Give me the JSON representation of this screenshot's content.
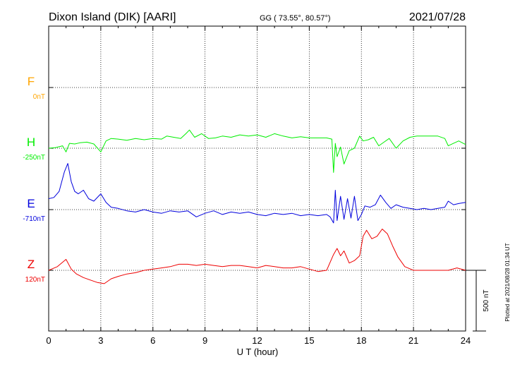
{
  "header": {
    "station": "Dixon Island (DIK)  [AARI]",
    "coords": "GG ( 73.55°,  80.57°)",
    "date": "2021/07/28"
  },
  "footer_note": "Plotted at 2021/08/28 01:34 UT",
  "colors": {
    "F": "#ffa500",
    "H": "#00ee00",
    "E": "#0000dd",
    "Z": "#ee0000",
    "axis": "#000000"
  },
  "chart_data": {
    "type": "line",
    "xlabel": "U T (hour)",
    "xlim": [
      0,
      24
    ],
    "x_ticks": [
      0,
      3,
      6,
      9,
      12,
      15,
      18,
      21,
      24
    ],
    "grid": true,
    "scale_bar": {
      "label": "500 nT",
      "value_nT": 500
    },
    "series": [
      {
        "name": "F",
        "baseline_label": "0nT",
        "baseline_nT": 0,
        "x": [],
        "values": []
      },
      {
        "name": "H",
        "baseline_label": "-250nT",
        "baseline_nT": -250,
        "x": [
          0,
          0.4,
          0.8,
          1.0,
          1.2,
          1.5,
          1.8,
          2.2,
          2.6,
          3.0,
          3.3,
          3.6,
          4.0,
          4.5,
          5.0,
          5.5,
          6.0,
          6.5,
          6.8,
          7.2,
          7.6,
          7.9,
          8.1,
          8.4,
          8.8,
          9.2,
          9.6,
          10.0,
          10.5,
          11.0,
          11.5,
          12.0,
          12.5,
          13.0,
          13.5,
          14.0,
          14.5,
          15.0,
          15.5,
          16.0,
          16.3,
          16.4,
          16.5,
          16.6,
          16.8,
          17.0,
          17.3,
          17.6,
          17.9,
          18.1,
          18.4,
          18.7,
          19.0,
          19.3,
          19.6,
          20.0,
          20.4,
          20.8,
          21.2,
          21.6,
          22.0,
          22.4,
          22.8,
          23.0,
          23.3,
          23.6,
          24.0
        ],
        "values": [
          -250,
          -245,
          -230,
          -280,
          -210,
          -215,
          -205,
          -200,
          -215,
          -280,
          -190,
          -170,
          -175,
          -185,
          -170,
          -180,
          -170,
          -175,
          -150,
          -160,
          -170,
          -130,
          -100,
          -160,
          -130,
          -170,
          -165,
          -150,
          -160,
          -140,
          -150,
          -140,
          -160,
          -130,
          -150,
          -165,
          -155,
          -165,
          -165,
          -165,
          -175,
          -450,
          -210,
          -320,
          -240,
          -380,
          -270,
          -250,
          -150,
          -190,
          -180,
          -160,
          -230,
          -200,
          -170,
          -250,
          -190,
          -160,
          -150,
          -150,
          -150,
          -150,
          -170,
          -230,
          -210,
          -190,
          -220
        ]
      },
      {
        "name": "E",
        "baseline_label": "-710nT",
        "baseline_nT": -710,
        "x": [
          0,
          0.3,
          0.6,
          0.9,
          1.1,
          1.3,
          1.5,
          1.7,
          2.0,
          2.3,
          2.6,
          3.0,
          3.3,
          3.6,
          4.0,
          4.5,
          5.0,
          5.5,
          6.0,
          6.5,
          7.0,
          7.5,
          8.0,
          8.5,
          9.0,
          9.5,
          10.0,
          10.5,
          11.0,
          11.5,
          12.0,
          12.5,
          13.0,
          13.5,
          14.0,
          14.5,
          15.0,
          15.5,
          16.0,
          16.2,
          16.4,
          16.5,
          16.6,
          16.8,
          17.0,
          17.2,
          17.4,
          17.6,
          17.8,
          18.0,
          18.2,
          18.5,
          18.8,
          19.1,
          19.4,
          19.7,
          20.0,
          20.4,
          20.8,
          21.2,
          21.6,
          22.0,
          22.4,
          22.8,
          23.0,
          23.3,
          23.6,
          24.0
        ],
        "values": [
          -620,
          -610,
          -560,
          -400,
          -330,
          -480,
          -560,
          -580,
          -550,
          -620,
          -640,
          -580,
          -650,
          -690,
          -700,
          -720,
          -730,
          -710,
          -730,
          -740,
          -720,
          -730,
          -720,
          -770,
          -740,
          -720,
          -750,
          -730,
          -740,
          -730,
          -750,
          -760,
          -740,
          -750,
          -740,
          -760,
          -750,
          -760,
          -750,
          -770,
          -820,
          -550,
          -800,
          -600,
          -790,
          -620,
          -780,
          -600,
          -800,
          -750,
          -680,
          -690,
          -670,
          -590,
          -650,
          -700,
          -670,
          -690,
          -700,
          -710,
          -700,
          -710,
          -700,
          -690,
          -640,
          -670,
          -660,
          -650
        ]
      },
      {
        "name": "Z",
        "baseline_label": "120nT",
        "baseline_nT": 120,
        "x": [
          0,
          0.5,
          1.0,
          1.3,
          1.6,
          2.0,
          2.4,
          2.8,
          3.2,
          3.6,
          4.0,
          4.5,
          5.0,
          5.5,
          6.0,
          6.5,
          7.0,
          7.5,
          8.0,
          8.5,
          9.0,
          9.5,
          10.0,
          10.5,
          11.0,
          11.5,
          12.0,
          12.5,
          13.0,
          13.5,
          14.0,
          14.5,
          15.0,
          15.5,
          16.0,
          16.4,
          16.6,
          16.8,
          17.0,
          17.3,
          17.6,
          17.9,
          18.1,
          18.3,
          18.6,
          18.9,
          19.2,
          19.5,
          19.8,
          20.1,
          20.5,
          21.0,
          21.5,
          22.0,
          22.5,
          23.0,
          23.5,
          24.0
        ],
        "values": [
          120,
          150,
          210,
          130,
          90,
          60,
          40,
          20,
          10,
          50,
          70,
          90,
          100,
          120,
          130,
          140,
          150,
          170,
          170,
          160,
          170,
          160,
          150,
          160,
          160,
          150,
          140,
          160,
          150,
          140,
          140,
          150,
          130,
          110,
          120,
          250,
          300,
          240,
          280,
          180,
          200,
          240,
          400,
          450,
          380,
          400,
          460,
          420,
          320,
          230,
          150,
          120,
          120,
          120,
          120,
          120,
          140,
          120
        ]
      }
    ]
  }
}
